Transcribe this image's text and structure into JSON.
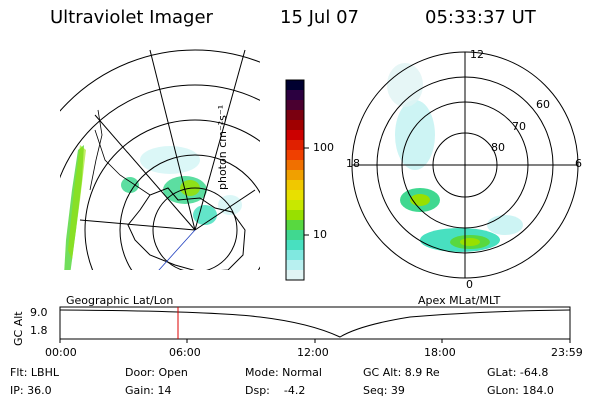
{
  "header": {
    "instrument": "Ultraviolet Imager",
    "date": "15 Jul 07",
    "time": "05:33:37 UT"
  },
  "colorbar": {
    "label": "photon cm⁻²s⁻¹",
    "scale": "log",
    "ticks": [
      "100",
      "10"
    ],
    "colors": [
      "#000030",
      "#2b0040",
      "#4a0030",
      "#7a0010",
      "#a00000",
      "#cc0000",
      "#e02000",
      "#f04000",
      "#f07000",
      "#f0a000",
      "#f0c800",
      "#e8e000",
      "#c8e800",
      "#98e000",
      "#58d840",
      "#40d890",
      "#48e0c0",
      "#80e8e0",
      "#b8f0f0",
      "#e0f4f4"
    ]
  },
  "left_map": {
    "label": "Geographic Lat/Lon"
  },
  "right_map": {
    "label": "Apex MLat/MLT",
    "mlt_labels": [
      "12",
      "6",
      "0",
      "18"
    ],
    "lat_labels": [
      "60",
      "70",
      "80"
    ]
  },
  "altitude_plot": {
    "ylabel": "GC Alt",
    "yticks": [
      "9.0",
      "1.8"
    ],
    "xticks": [
      "00:00",
      "06:00",
      "12:00",
      "18:00",
      "23:59"
    ],
    "cursor_time": "05:33",
    "cursor_color": "#dd0000"
  },
  "info": {
    "filter": "Flt: LBHL",
    "ip": "IP: 36.0",
    "door": "Door: Open",
    "gain": "Gain: 14",
    "mode": "Mode: Normal",
    "dsp": "Dsp:    -4.2",
    "gc_alt": "GC Alt: 8.9 Re",
    "seq": "Seq: 39",
    "glat": "GLat: -64.8",
    "glon": "GLon: 184.0"
  }
}
